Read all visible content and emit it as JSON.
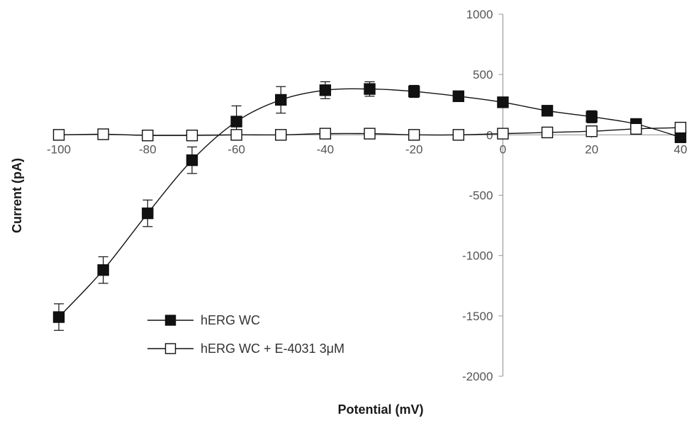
{
  "chart_data": {
    "type": "line",
    "title": "",
    "xlabel": "Potential (mV)",
    "ylabel": "Current (pA)",
    "xlim": [
      -100,
      40
    ],
    "ylim": [
      -2000,
      1000
    ],
    "x_ticks": [
      -100,
      -80,
      -60,
      -40,
      -20,
      0,
      20,
      40
    ],
    "x_tick_labels": [
      "-100",
      "-80",
      "-60",
      "-40",
      "-20",
      "0",
      "20",
      "40"
    ],
    "y_ticks": [
      1000,
      500,
      0,
      -500,
      -1000,
      -1500,
      -2000
    ],
    "y_tick_labels": [
      "1000",
      "500",
      "0",
      "-500",
      "-1000",
      "-1500",
      "-2000"
    ],
    "grid": false,
    "legend_position": "lower-left",
    "series": [
      {
        "name": "hERG WC",
        "marker": "filled-square",
        "color": "#111111",
        "x": [
          -100,
          -90,
          -80,
          -70,
          -60,
          -50,
          -40,
          -30,
          -20,
          -10,
          0,
          10,
          20,
          30,
          40
        ],
        "y": [
          -1510,
          -1120,
          -650,
          -210,
          110,
          290,
          370,
          380,
          360,
          320,
          270,
          200,
          150,
          90,
          -20
        ],
        "error": [
          110,
          110,
          110,
          110,
          130,
          110,
          70,
          60,
          50,
          30,
          30,
          30,
          50,
          30,
          10
        ]
      },
      {
        "name": "hERG WC + E-4031 3μM",
        "marker": "open-square",
        "color": "#111111",
        "x": [
          -100,
          -90,
          -80,
          -70,
          -60,
          -50,
          -40,
          -30,
          -20,
          -10,
          0,
          10,
          20,
          30,
          40
        ],
        "y": [
          0,
          5,
          -5,
          -5,
          0,
          0,
          10,
          10,
          0,
          0,
          10,
          20,
          30,
          50,
          60
        ],
        "error": [
          0,
          0,
          0,
          0,
          0,
          0,
          0,
          0,
          0,
          0,
          0,
          0,
          0,
          0,
          0
        ]
      }
    ]
  }
}
